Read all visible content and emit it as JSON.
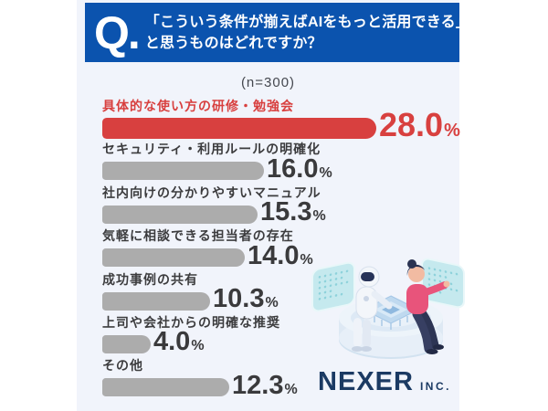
{
  "header": {
    "q_label": "Q.",
    "question_line1": "「こういう条件が揃えばAIをもっと活用できる」",
    "question_line2": "と思うものはどれですか？"
  },
  "sample_size": "(n=300)",
  "chart_data": {
    "type": "bar",
    "orientation": "horizontal",
    "title": "「こういう条件が揃えばAIをもっと活用できる」と思うものはどれですか？",
    "sample_size_label": "(n=300)",
    "unit": "%",
    "categories": [
      "具体的な使い方の研修・勉強会",
      "セキュリティ・利用ルールの明確化",
      "社内向けの分かりやすいマニュアル",
      "気軽に相談できる担当者の存在",
      "成功事例の共有",
      "上司や会社からの明確な推奨",
      "その他"
    ],
    "values": [
      28.0,
      16.0,
      15.3,
      14.0,
      10.3,
      4.0,
      12.3
    ],
    "value_labels": [
      "28.0",
      "16.0",
      "15.3",
      "14.0",
      "10.3",
      "4.0",
      "12.3"
    ],
    "highlight_index": 0,
    "colors": {
      "highlight": "#D8403F",
      "default": "#ACACAC"
    },
    "xlim": [
      0,
      30
    ],
    "grid": false,
    "legend": false
  },
  "brand": {
    "name": "NEXER",
    "suffix": "INC."
  }
}
